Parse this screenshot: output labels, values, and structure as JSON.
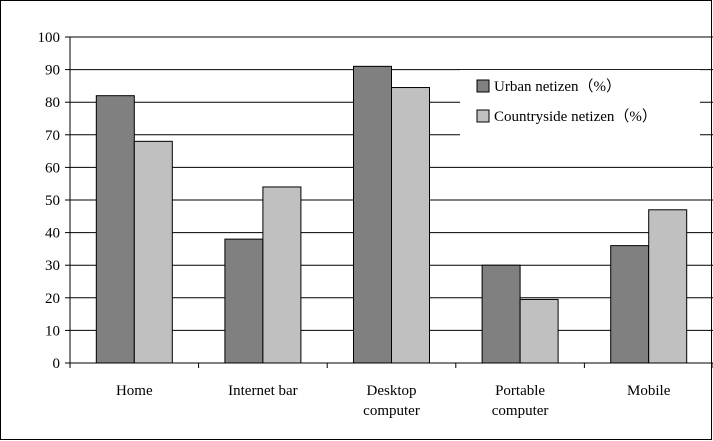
{
  "chart_data": {
    "type": "bar",
    "categories": [
      [
        "Home"
      ],
      [
        "Internet bar"
      ],
      [
        "Desktop",
        "computer"
      ],
      [
        "Portable",
        "computer"
      ],
      [
        "Mobile"
      ]
    ],
    "series": [
      {
        "name": "Urban netizen（%）",
        "values": [
          82,
          38,
          91,
          30,
          36
        ],
        "color": "#808080"
      },
      {
        "name": "Countryside netizen（%）",
        "values": [
          68,
          54,
          84.5,
          19.5,
          47
        ],
        "color": "#c0c0c0"
      }
    ],
    "yticks": [
      0,
      10,
      20,
      30,
      40,
      50,
      60,
      70,
      80,
      90,
      100
    ],
    "ylim": [
      0,
      100
    ],
    "grid": true,
    "legend_position": "top-right",
    "title": "",
    "xlabel": "",
    "ylabel": ""
  }
}
